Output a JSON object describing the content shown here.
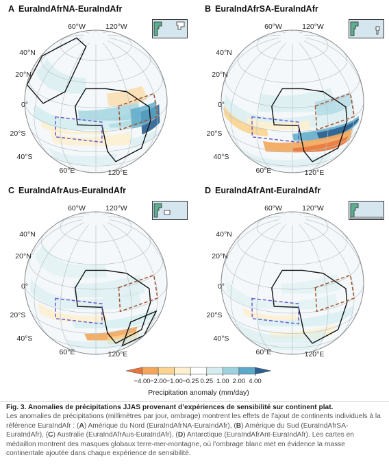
{
  "panels": [
    {
      "letter": "A",
      "title": "EuraIndAfrNA-EuraIndAfr",
      "inset": "NA"
    },
    {
      "letter": "B",
      "title": "EuraIndAfrSA-EuraIndAfr",
      "inset": "SA"
    },
    {
      "letter": "C",
      "title": "EuraIndAfrAus-EuraIndAfr",
      "inset": "Aus"
    },
    {
      "letter": "D",
      "title": "EuraIndAfrAnt-EuraIndAfr",
      "inset": "Ant"
    }
  ],
  "map_labels": {
    "lon_top_left": "60°W",
    "lon_top_right": "120°W",
    "lat_40n": "40°N",
    "lat_20n": "20°N",
    "lat_0": "0°",
    "lat_20s": "20°S",
    "lat_40s": "40°S",
    "lon_bottom_left": "60°E",
    "lon_bottom_right": "120°E"
  },
  "colorbar": {
    "ticks": [
      "−4.00",
      "−2.00",
      "−1.00",
      "−0.25",
      "0.25",
      "1.00",
      "2.00",
      "4.00"
    ],
    "label": "Precipitation anomaly (mm/day)",
    "colors": [
      "#e8743b",
      "#f3a65a",
      "#fbd48f",
      "#fdf0cf",
      "#ffffff",
      "#d5edf0",
      "#9fd2df",
      "#5aa9c8",
      "#2a5f8f"
    ]
  },
  "caption": {
    "title": "Fig. 3. Anomalies de précipitations JJAS provenant d’expériences de sensibilité sur continent plat.",
    "p1": "Les anomalies de précipitations (millimètres par jour, ombrage) montrent les effets de l’ajout de continents individuels à la référence EuraIndAfr : (",
    "a": "A",
    "p2": ") Amérique du Nord (EuraIndAfrNA-EuraIndAfr), (",
    "b": "B",
    "p3": ") Amérique du Sud (EuraIndAfrSA-EuraIndAfr), (",
    "c": "C",
    "p4": ") Australie (EuraIndAfrAus-EuraIndAfr), (",
    "d": "D",
    "p5": ") Antarctique (EuraIndAfrAnt-EuraIndAfr). Les cartes en médaillon montrent des masques globaux terre-mer-montagne, où l’ombrage blanc met en évidence la masse continentale ajoutée dans chaque expérience de sensibilité."
  }
}
